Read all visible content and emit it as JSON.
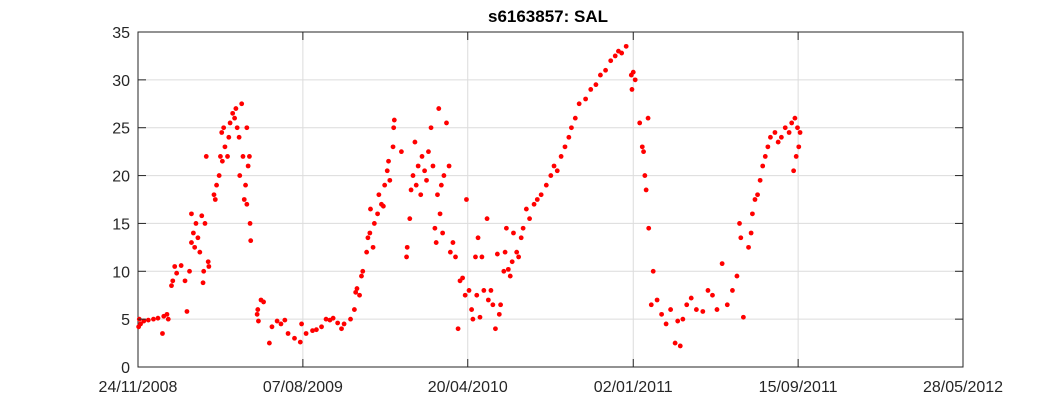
{
  "chart_data": {
    "type": "scatter",
    "title": "s6163857: SAL",
    "xlabel": "",
    "ylabel": "",
    "x_axis": {
      "type": "date",
      "range": [
        "2008-11-24",
        "2012-05-28"
      ],
      "ticks": [
        "2008-11-24",
        "2009-08-07",
        "2010-04-20",
        "2011-01-02",
        "2011-09-15",
        "2012-05-28"
      ],
      "tick_labels": [
        "24/11/2008",
        "07/08/2009",
        "20/04/2010",
        "02/01/2011",
        "15/09/2011",
        "28/05/2012"
      ]
    },
    "y_axis": {
      "range": [
        0,
        35
      ],
      "ticks": [
        0,
        5,
        10,
        15,
        20,
        25,
        30,
        35
      ]
    },
    "grid": true,
    "marker_color": "#ff0000",
    "series": [
      {
        "values": [
          [
            "2008-11-25",
            4.2
          ],
          [
            "2008-11-26",
            5.0
          ],
          [
            "2008-11-28",
            4.5
          ],
          [
            "2008-12-03",
            4.8
          ],
          [
            "2008-12-10",
            4.9
          ],
          [
            "2008-12-18",
            5.0
          ],
          [
            "2008-12-25",
            5.1
          ],
          [
            "2009-01-01",
            3.5
          ],
          [
            "2009-01-03",
            5.3
          ],
          [
            "2009-01-08",
            5.5
          ],
          [
            "2009-01-10",
            5.0
          ],
          [
            "2009-01-15",
            8.5
          ],
          [
            "2009-01-17",
            9.0
          ],
          [
            "2009-01-20",
            10.5
          ],
          [
            "2009-01-23",
            9.8
          ],
          [
            "2009-01-30",
            10.6
          ],
          [
            "2009-02-05",
            9.0
          ],
          [
            "2009-02-08",
            5.8
          ],
          [
            "2009-02-12",
            10.0
          ],
          [
            "2009-02-15",
            13.0
          ],
          [
            "2009-02-15",
            16.0
          ],
          [
            "2009-02-18",
            14.0
          ],
          [
            "2009-02-20",
            12.5
          ],
          [
            "2009-02-22",
            15.0
          ],
          [
            "2009-02-25",
            13.5
          ],
          [
            "2009-02-28",
            12.0
          ],
          [
            "2009-03-03",
            15.8
          ],
          [
            "2009-03-05",
            8.8
          ],
          [
            "2009-03-06",
            10.0
          ],
          [
            "2009-03-08",
            15.0
          ],
          [
            "2009-03-10",
            22.0
          ],
          [
            "2009-03-13",
            11.0
          ],
          [
            "2009-03-14",
            10.5
          ],
          [
            "2009-03-22",
            18.0
          ],
          [
            "2009-03-24",
            17.5
          ],
          [
            "2009-03-26",
            19.0
          ],
          [
            "2009-03-30",
            20.0
          ],
          [
            "2009-04-01",
            22.0
          ],
          [
            "2009-04-03",
            24.5
          ],
          [
            "2009-04-04",
            21.5
          ],
          [
            "2009-04-06",
            25.0
          ],
          [
            "2009-04-08",
            23.0
          ],
          [
            "2009-04-12",
            22.0
          ],
          [
            "2009-04-14",
            24.0
          ],
          [
            "2009-04-16",
            25.5
          ],
          [
            "2009-04-20",
            26.5
          ],
          [
            "2009-04-23",
            26.0
          ],
          [
            "2009-04-25",
            27.0
          ],
          [
            "2009-04-27",
            25.0
          ],
          [
            "2009-04-30",
            24.0
          ],
          [
            "2009-05-01",
            20.0
          ],
          [
            "2009-05-04",
            27.5
          ],
          [
            "2009-05-06",
            22.0
          ],
          [
            "2009-05-08",
            17.5
          ],
          [
            "2009-05-10",
            19.0
          ],
          [
            "2009-05-12",
            25.0
          ],
          [
            "2009-05-14",
            21.0
          ],
          [
            "2009-05-16",
            22.0
          ],
          [
            "2009-05-17",
            15.0
          ],
          [
            "2009-05-18",
            13.2
          ],
          [
            "2009-05-12",
            17.0
          ],
          [
            "2009-05-28",
            5.5
          ],
          [
            "2009-05-29",
            6.0
          ],
          [
            "2009-05-30",
            4.8
          ],
          [
            "2009-06-03",
            7.0
          ],
          [
            "2009-06-07",
            6.8
          ],
          [
            "2009-06-16",
            2.5
          ],
          [
            "2009-06-20",
            4.2
          ],
          [
            "2009-06-28",
            4.8
          ],
          [
            "2009-07-04",
            4.5
          ],
          [
            "2009-07-10",
            4.9
          ],
          [
            "2009-07-15",
            3.5
          ],
          [
            "2009-07-25",
            3.0
          ],
          [
            "2009-08-03",
            2.6
          ],
          [
            "2009-08-05",
            4.5
          ],
          [
            "2009-08-12",
            3.5
          ],
          [
            "2009-08-22",
            3.8
          ],
          [
            "2009-08-28",
            3.9
          ],
          [
            "2009-09-05",
            4.2
          ],
          [
            "2009-09-12",
            5.0
          ],
          [
            "2009-09-18",
            4.9
          ],
          [
            "2009-09-23",
            5.1
          ],
          [
            "2009-09-30",
            4.6
          ],
          [
            "2009-10-06",
            4.0
          ],
          [
            "2009-10-10",
            4.5
          ],
          [
            "2009-10-20",
            5.0
          ],
          [
            "2009-10-26",
            6.0
          ],
          [
            "2009-10-28",
            7.8
          ],
          [
            "2009-10-30",
            8.2
          ],
          [
            "2009-11-03",
            7.5
          ],
          [
            "2009-11-06",
            9.5
          ],
          [
            "2009-11-08",
            10.0
          ],
          [
            "2009-11-14",
            12.0
          ],
          [
            "2009-11-16",
            13.5
          ],
          [
            "2009-11-19",
            14.0
          ],
          [
            "2009-11-20",
            16.5
          ],
          [
            "2009-11-24",
            12.5
          ],
          [
            "2009-11-26",
            15.0
          ],
          [
            "2009-12-01",
            16.0
          ],
          [
            "2009-12-03",
            18.0
          ],
          [
            "2009-12-07",
            17.0
          ],
          [
            "2009-12-10",
            16.8
          ],
          [
            "2009-12-12",
            19.0
          ],
          [
            "2009-12-16",
            20.5
          ],
          [
            "2009-12-18",
            21.5
          ],
          [
            "2009-12-20",
            19.5
          ],
          [
            "2009-12-25",
            23.0
          ],
          [
            "2009-12-26",
            25.0
          ],
          [
            "2009-12-27",
            25.8
          ],
          [
            "2010-01-07",
            22.5
          ],
          [
            "2010-01-15",
            11.5
          ],
          [
            "2010-01-16",
            12.5
          ],
          [
            "2010-01-20",
            15.5
          ],
          [
            "2010-01-22",
            18.5
          ],
          [
            "2010-01-25",
            20.0
          ],
          [
            "2010-01-28",
            23.5
          ],
          [
            "2010-01-30",
            19.0
          ],
          [
            "2010-02-02",
            21.0
          ],
          [
            "2010-02-06",
            18.0
          ],
          [
            "2010-02-08",
            22.0
          ],
          [
            "2010-02-12",
            20.5
          ],
          [
            "2010-02-15",
            19.5
          ],
          [
            "2010-02-18",
            22.5
          ],
          [
            "2010-02-22",
            25.0
          ],
          [
            "2010-02-25",
            21.0
          ],
          [
            "2010-02-28",
            14.5
          ],
          [
            "2010-03-02",
            13.0
          ],
          [
            "2010-03-04",
            18.0
          ],
          [
            "2010-03-06",
            27.0
          ],
          [
            "2010-03-08",
            16.0
          ],
          [
            "2010-03-10",
            19.0
          ],
          [
            "2010-03-12",
            14.0
          ],
          [
            "2010-03-14",
            20.0
          ],
          [
            "2010-03-18",
            25.5
          ],
          [
            "2010-03-22",
            21.0
          ],
          [
            "2010-03-24",
            12.0
          ],
          [
            "2010-03-28",
            13.0
          ],
          [
            "2010-04-01",
            11.5
          ],
          [
            "2010-04-05",
            4.0
          ],
          [
            "2010-04-08",
            9.0
          ],
          [
            "2010-04-12",
            9.3
          ],
          [
            "2010-04-16",
            7.5
          ],
          [
            "2010-04-18",
            17.5
          ],
          [
            "2010-04-22",
            8.0
          ],
          [
            "2010-04-26",
            6.0
          ],
          [
            "2010-04-28",
            5.0
          ],
          [
            "2010-05-02",
            11.5
          ],
          [
            "2010-05-04",
            7.5
          ],
          [
            "2010-05-06",
            13.5
          ],
          [
            "2010-05-09",
            5.2
          ],
          [
            "2010-05-12",
            11.5
          ],
          [
            "2010-05-15",
            8.0
          ],
          [
            "2010-05-20",
            15.5
          ],
          [
            "2010-05-22",
            7.0
          ],
          [
            "2010-05-26",
            8.0
          ],
          [
            "2010-05-29",
            6.5
          ],
          [
            "2010-06-02",
            4.0
          ],
          [
            "2010-06-05",
            11.8
          ],
          [
            "2010-06-08",
            5.5
          ],
          [
            "2010-06-10",
            6.5
          ],
          [
            "2010-06-15",
            10.0
          ],
          [
            "2010-06-17",
            12.0
          ],
          [
            "2010-06-19",
            14.5
          ],
          [
            "2010-06-22",
            10.2
          ],
          [
            "2010-06-25",
            9.5
          ],
          [
            "2010-06-28",
            11.0
          ],
          [
            "2010-06-30",
            14.0
          ],
          [
            "2010-07-05",
            12.0
          ],
          [
            "2010-07-08",
            11.5
          ],
          [
            "2010-07-12",
            13.5
          ],
          [
            "2010-07-15",
            14.5
          ],
          [
            "2010-07-20",
            16.5
          ],
          [
            "2010-07-25",
            15.5
          ],
          [
            "2010-08-01",
            17.0
          ],
          [
            "2010-08-06",
            17.5
          ],
          [
            "2010-08-12",
            18.0
          ],
          [
            "2010-08-20",
            19.0
          ],
          [
            "2010-08-27",
            20.0
          ],
          [
            "2010-09-01",
            21.0
          ],
          [
            "2010-09-06",
            20.5
          ],
          [
            "2010-09-12",
            22.0
          ],
          [
            "2010-09-18",
            23.0
          ],
          [
            "2010-09-24",
            24.0
          ],
          [
            "2010-09-28",
            25.0
          ],
          [
            "2010-10-04",
            26.0
          ],
          [
            "2010-10-10",
            27.5
          ],
          [
            "2010-10-20",
            28.0
          ],
          [
            "2010-10-28",
            29.0
          ],
          [
            "2010-11-05",
            29.5
          ],
          [
            "2010-11-12",
            30.5
          ],
          [
            "2010-11-20",
            31.0
          ],
          [
            "2010-11-28",
            32.0
          ],
          [
            "2010-12-05",
            32.5
          ],
          [
            "2010-12-10",
            33.0
          ],
          [
            "2010-12-15",
            32.8
          ],
          [
            "2010-12-22",
            33.5
          ],
          [
            "2010-12-30",
            30.5
          ],
          [
            "2010-12-31",
            29.0
          ],
          [
            "2011-01-02",
            30.8
          ],
          [
            "2011-01-05",
            30.0
          ],
          [
            "2011-01-12",
            25.5
          ],
          [
            "2011-01-16",
            23.0
          ],
          [
            "2011-01-18",
            22.5
          ],
          [
            "2011-01-20",
            20.0
          ],
          [
            "2011-01-22",
            18.5
          ],
          [
            "2011-01-25",
            26.0
          ],
          [
            "2011-01-26",
            14.5
          ],
          [
            "2011-01-30",
            6.5
          ],
          [
            "2011-02-02",
            10.0
          ],
          [
            "2011-02-08",
            7.0
          ],
          [
            "2011-02-15",
            5.5
          ],
          [
            "2011-02-22",
            4.5
          ],
          [
            "2011-03-01",
            6.0
          ],
          [
            "2011-03-08",
            2.5
          ],
          [
            "2011-03-12",
            4.8
          ],
          [
            "2011-03-16",
            2.2
          ],
          [
            "2011-03-20",
            5.0
          ],
          [
            "2011-03-26",
            6.5
          ],
          [
            "2011-04-02",
            7.2
          ],
          [
            "2011-04-10",
            6.0
          ],
          [
            "2011-04-20",
            5.8
          ],
          [
            "2011-04-28",
            8.0
          ],
          [
            "2011-05-05",
            7.5
          ],
          [
            "2011-05-12",
            6.0
          ],
          [
            "2011-05-20",
            10.8
          ],
          [
            "2011-05-28",
            6.5
          ],
          [
            "2011-06-05",
            8.0
          ],
          [
            "2011-06-12",
            9.5
          ],
          [
            "2011-06-16",
            15.0
          ],
          [
            "2011-06-18",
            13.5
          ],
          [
            "2011-06-22",
            5.2
          ],
          [
            "2011-06-30",
            12.5
          ],
          [
            "2011-07-04",
            14.0
          ],
          [
            "2011-07-06",
            16.0
          ],
          [
            "2011-07-10",
            17.5
          ],
          [
            "2011-07-14",
            18.0
          ],
          [
            "2011-07-18",
            19.5
          ],
          [
            "2011-07-22",
            21.0
          ],
          [
            "2011-07-26",
            22.0
          ],
          [
            "2011-07-30",
            23.0
          ],
          [
            "2011-08-03",
            24.0
          ],
          [
            "2011-08-10",
            24.5
          ],
          [
            "2011-08-15",
            23.5
          ],
          [
            "2011-08-20",
            24.0
          ],
          [
            "2011-08-26",
            25.0
          ],
          [
            "2011-09-01",
            24.5
          ],
          [
            "2011-09-05",
            25.5
          ],
          [
            "2011-09-08",
            20.5
          ],
          [
            "2011-09-10",
            26.0
          ],
          [
            "2011-09-12",
            22.0
          ],
          [
            "2011-09-14",
            25.0
          ],
          [
            "2011-09-16",
            23.0
          ],
          [
            "2011-09-18",
            24.5
          ]
        ]
      }
    ]
  }
}
